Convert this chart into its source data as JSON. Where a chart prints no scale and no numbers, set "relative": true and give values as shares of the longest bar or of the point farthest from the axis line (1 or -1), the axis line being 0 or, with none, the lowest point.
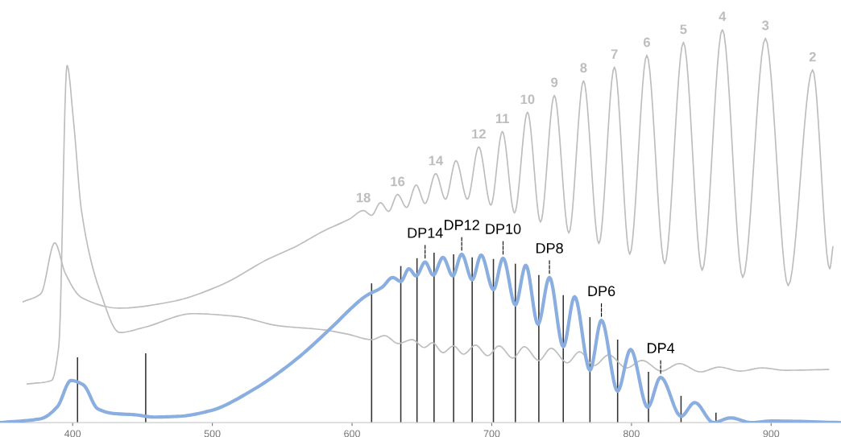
{
  "chart_data": {
    "type": "line",
    "relative": true,
    "tick_labels": "x",
    "grid": false,
    "legend": false,
    "xlim": [
      348,
      950
    ],
    "xticks": [
      400,
      500,
      600,
      700,
      800,
      900
    ],
    "series": [
      {
        "color": "#8aaee0",
        "x": [
          348.3,
          377.3,
          389,
          398.8,
          407.6,
          418,
          429.7,
          444.2,
          458.7,
          476.2,
          499.4,
          528.5,
          557.6,
          586.6,
          598.3,
          609.9,
          621.5,
          629.1,
          634.9,
          640.7,
          645.9,
          652.3,
          658.1,
          665.1,
          672.1,
          678.5,
          686,
          692.4,
          701.2,
          708.1,
          716.9,
          724.4,
          733.1,
          741.3,
          751.2,
          759.3,
          770.3,
          778.5,
          790.1,
          799.4,
          811.6,
          820.9,
          835.5,
          845.3,
          858.7,
          870.9,
          886,
          900.6,
          949.4
        ],
        "values": [
          0,
          0.01,
          0.04,
          0.107,
          0.096,
          0.035,
          0.023,
          0.02,
          0.014,
          0.016,
          0.031,
          0.082,
          0.154,
          0.246,
          0.287,
          0.322,
          0.344,
          0.369,
          0.359,
          0.391,
          0.373,
          0.408,
          0.375,
          0.42,
          0.373,
          0.428,
          0.363,
          0.426,
          0.338,
          0.418,
          0.299,
          0.4,
          0.25,
          0.369,
          0.193,
          0.32,
          0.133,
          0.26,
          0.08,
          0.186,
          0.039,
          0.115,
          0.016,
          0.051,
          0,
          0.012,
          0,
          0.004,
          0
        ]
      },
      {
        "color": "#bdbdbd",
        "x": [
          364.5,
          377.3,
          387.2,
          394.8,
          406.4,
          433.7,
          470.3,
          505.2,
          540.1,
          559.3,
          579.1,
          598.3,
          608.1,
          614,
          620.4,
          626.2,
          632.6,
          639,
          645.9,
          652.3,
          659.9,
          666.9,
          674.4,
          682.6,
          690.7,
          699.4,
          707.6,
          716.3,
          725.6,
          734.9,
          744.8,
          755.2,
          765.7,
          776.7,
          787.8,
          798.8,
          811,
          823.8,
          837.2,
          850.6,
          865.1,
          879.7,
          895.9,
          912.2,
          929.7,
          941.9,
          944.2
        ],
        "values": [
          0.307,
          0.328,
          0.457,
          0.379,
          0.318,
          0.291,
          0.307,
          0.348,
          0.416,
          0.447,
          0.486,
          0.518,
          0.539,
          0.527,
          0.559,
          0.537,
          0.58,
          0.547,
          0.604,
          0.557,
          0.633,
          0.568,
          0.666,
          0.568,
          0.701,
          0.553,
          0.74,
          0.533,
          0.789,
          0.51,
          0.832,
          0.482,
          0.869,
          0.455,
          0.904,
          0.428,
          0.934,
          0.404,
          0.967,
          0.387,
          1,
          0.369,
          0.977,
          0.348,
          0.897,
          0.391,
          0.447
        ]
      },
      {
        "color": "#bdbdbd",
        "x": [
          367.4,
          384.9,
          390.1,
          396,
          400.6,
          406.4,
          419.8,
          433.7,
          451.2,
          486,
          516.9,
          547.7,
          579.1,
          596.5,
          614,
          623.3,
          633.1,
          643,
          651.7,
          657.6,
          665.1,
          672.7,
          679.7,
          688.4,
          697.1,
          705.2,
          715.1,
          723.3,
          733.7,
          742.5,
          754.1,
          762.8,
          773.3,
          783.7,
          796.5,
          807.6,
          821.5,
          834.3,
          849.4,
          862.8,
          877.9,
          893.6,
          909.9,
          941.3
        ],
        "values": [
          0.098,
          0.107,
          0.195,
          0.908,
          0.768,
          0.537,
          0.332,
          0.229,
          0.242,
          0.277,
          0.27,
          0.246,
          0.236,
          0.225,
          0.211,
          0.221,
          0.201,
          0.211,
          0.191,
          0.203,
          0.178,
          0.195,
          0.174,
          0.197,
          0.17,
          0.195,
          0.164,
          0.193,
          0.158,
          0.189,
          0.152,
          0.18,
          0.145,
          0.172,
          0.139,
          0.158,
          0.131,
          0.15,
          0.129,
          0.141,
          0.131,
          0.139,
          0.133,
          0.135
        ]
      },
      {
        "type": "bar",
        "color": "#333333",
        "x": [
          403.5,
          452.3,
          614,
          634.9,
          646.5,
          658.7,
          672.7,
          686,
          701.2,
          716.9,
          733.7,
          751.2,
          770.3,
          790.1,
          812.2,
          835.5,
          860.5
        ],
        "values": [
          0.166,
          0.176,
          0.354,
          0.398,
          0.418,
          0.432,
          0.428,
          0.42,
          0.416,
          0.404,
          0.375,
          0.324,
          0.268,
          0.211,
          0.129,
          0.068,
          0.025
        ]
      }
    ],
    "annotations": [
      {
        "text": "DP14",
        "x": 652.3,
        "y": 0.408
      },
      {
        "text": "DP12",
        "x": 678.5,
        "y": 0.428
      },
      {
        "text": "DP10",
        "x": 708.1,
        "y": 0.418
      },
      {
        "text": "DP8",
        "x": 741.3,
        "y": 0.369
      },
      {
        "text": "DP6",
        "x": 778.5,
        "y": 0.26
      },
      {
        "text": "DP4",
        "x": 820.9,
        "y": 0.115
      },
      {
        "text": "18",
        "x": 608.1,
        "y": 0.539
      },
      {
        "text": "16",
        "x": 632.6,
        "y": 0.58
      },
      {
        "text": "14",
        "x": 659.9,
        "y": 0.633
      },
      {
        "text": "12",
        "x": 690.7,
        "y": 0.701
      },
      {
        "text": "11",
        "x": 707.6,
        "y": 0.74
      },
      {
        "text": "10",
        "x": 725.6,
        "y": 0.789
      },
      {
        "text": "9",
        "x": 744.8,
        "y": 0.832
      },
      {
        "text": "8",
        "x": 765.7,
        "y": 0.869
      },
      {
        "text": "7",
        "x": 787.8,
        "y": 0.904
      },
      {
        "text": "6",
        "x": 811,
        "y": 0.934
      },
      {
        "text": "5",
        "x": 837.2,
        "y": 0.967
      },
      {
        "text": "4",
        "x": 865.1,
        "y": 1
      },
      {
        "text": "3",
        "x": 895.9,
        "y": 0.977
      },
      {
        "text": "2",
        "x": 929.7,
        "y": 0.897
      }
    ]
  }
}
